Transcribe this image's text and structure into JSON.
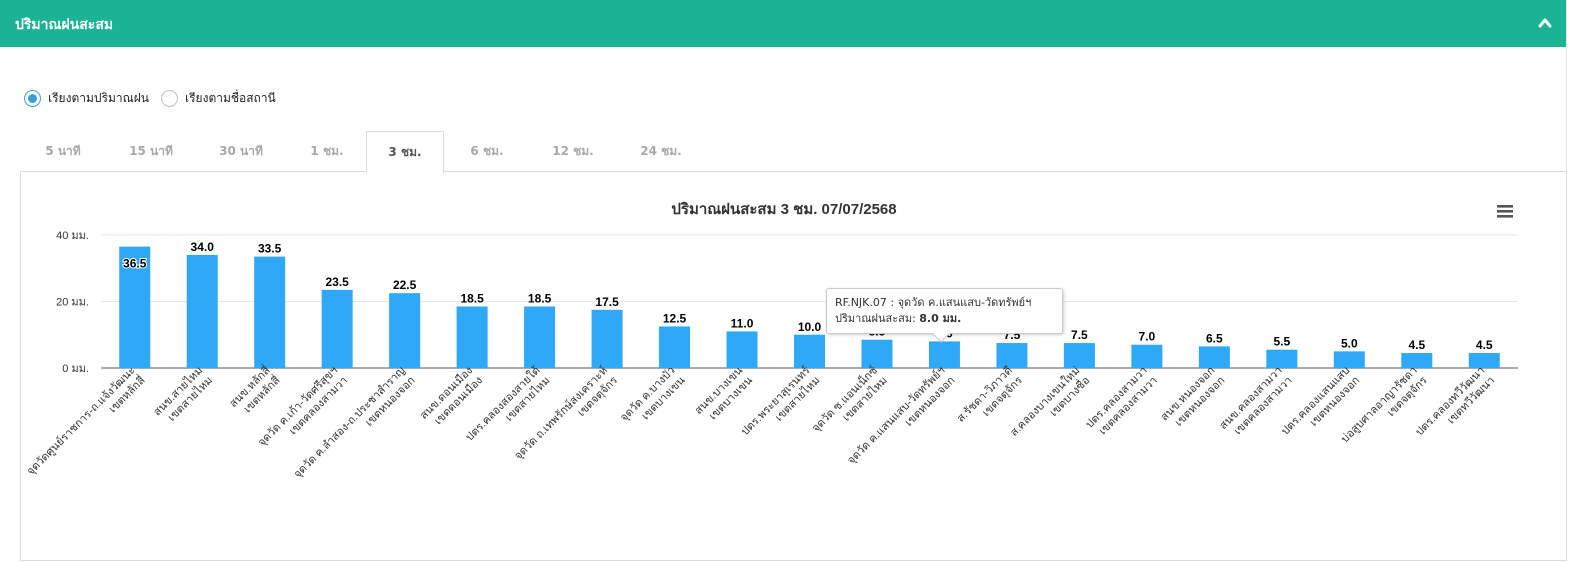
{
  "panel": {
    "title": "ปริมาณฝนสะสม"
  },
  "sort_options": [
    {
      "label": "เรียงตามปริมาณฝน",
      "checked": true
    },
    {
      "label": "เรียงตามชื่อสถานี",
      "checked": false
    }
  ],
  "tabs": [
    {
      "label": "5 นาที",
      "active": false
    },
    {
      "label": "15 นาที",
      "active": false
    },
    {
      "label": "30 นาที",
      "active": false
    },
    {
      "label": "1 ชม.",
      "active": false
    },
    {
      "label": "3 ชม.",
      "active": true
    },
    {
      "label": "6 ชม.",
      "active": false
    },
    {
      "label": "12 ชม.",
      "active": false
    },
    {
      "label": "24 ชม.",
      "active": false
    }
  ],
  "colors": {
    "header": "#1ab394",
    "bar": "#2ea8f7",
    "radio_checked": "#3aa0d8"
  },
  "chart_data": {
    "type": "bar",
    "title": "ปริมาณฝนสะสม 3 ชม. 07/07/2568",
    "ylim": [
      0,
      40
    ],
    "yticks": [
      0,
      20,
      40
    ],
    "ytick_labels": [
      "0 มม.",
      "20 มม.",
      "40 มม."
    ],
    "grid": true,
    "categories": [
      [
        "จุดวัดศูนย์ราชการ-ถ.แจ้งวัฒนะ",
        "เขตหลักสี่"
      ],
      [
        "สนข.สายไหม",
        "เขตสายไหม"
      ],
      [
        "สนข.หลักสี่",
        "เขตหลักสี่"
      ],
      [
        "จุดวัด ค.เก้า-วัดศรีสุขฯ",
        "เขตคลองสามวา"
      ],
      [
        "จุดวัด ค.ลำสอง-ถ.ประชาสำราญ",
        "เขตหนองจอก"
      ],
      [
        "สนข.ดอนเมือง",
        "เขตดอนเมือง"
      ],
      [
        "ปตร.คลองสองสายใต้",
        "เขตสายไหม"
      ],
      [
        "จุดวัด ถ.เทพรักษ์สงเคราะห์",
        "เขตจตุจักร"
      ],
      [
        "จุดวัด ค.บางบัว",
        "เขตบางเขน"
      ],
      [
        "สนข.บางเขน",
        "เขตบางเขน"
      ],
      [
        "ปตร.พระยาสุเรนทร์",
        "เขตสายไหม"
      ],
      [
        "จุดวัด ซ.แอนเน็กซ์",
        "เขตสายไหม"
      ],
      [
        "จุดวัด ค.แสนแสบ-วัดทรัพย์ฯ",
        "เขตหนองจอก"
      ],
      [
        "ส.รัชดา-วิภาวดี",
        "เขตจตุจักร"
      ],
      [
        "ส.คลองบางเขนใหม่",
        "เขตบางซื่อ"
      ],
      [
        "ปตร.คลองสามวา",
        "เขตคลองสามวา"
      ],
      [
        "สนข.หนองจอก",
        "เขตหนองจอก"
      ],
      [
        "สนข.คลองสามวา",
        "เขตคลองสามวา"
      ],
      [
        "ปตร.คลองแสนแสบ",
        "เขตหนองจอก"
      ],
      [
        "บ่อสูบศาลอาญารัชดา",
        "เขตจตุจักร"
      ],
      [
        "ปตร.คลองทวีวัฒนา",
        "เขตทวีวัฒนา"
      ]
    ],
    "values": [
      36.5,
      34.0,
      33.5,
      23.5,
      22.5,
      18.5,
      18.5,
      17.5,
      12.5,
      11.0,
      10.0,
      8.5,
      8.0,
      7.5,
      7.5,
      7.0,
      6.5,
      5.5,
      5.0,
      4.5,
      4.5
    ],
    "data_labels": [
      "36.5",
      "34.0",
      "33.5",
      "23.5",
      "22.5",
      "18.5",
      "18.5",
      "17.5",
      "12.5",
      "11.0",
      "10.0",
      "8.5",
      "8.0",
      "7.5",
      "7.5",
      "7.0",
      "6.5",
      "5.5",
      "5.0",
      "4.5",
      "4.5"
    ]
  },
  "tooltip": {
    "station": "RF.NJK.07 : จุดวัด ค.แสนแสบ-วัดทรัพย์ฯ",
    "label": "ปริมาณฝนสะสม:",
    "value": "8.0 มม."
  }
}
